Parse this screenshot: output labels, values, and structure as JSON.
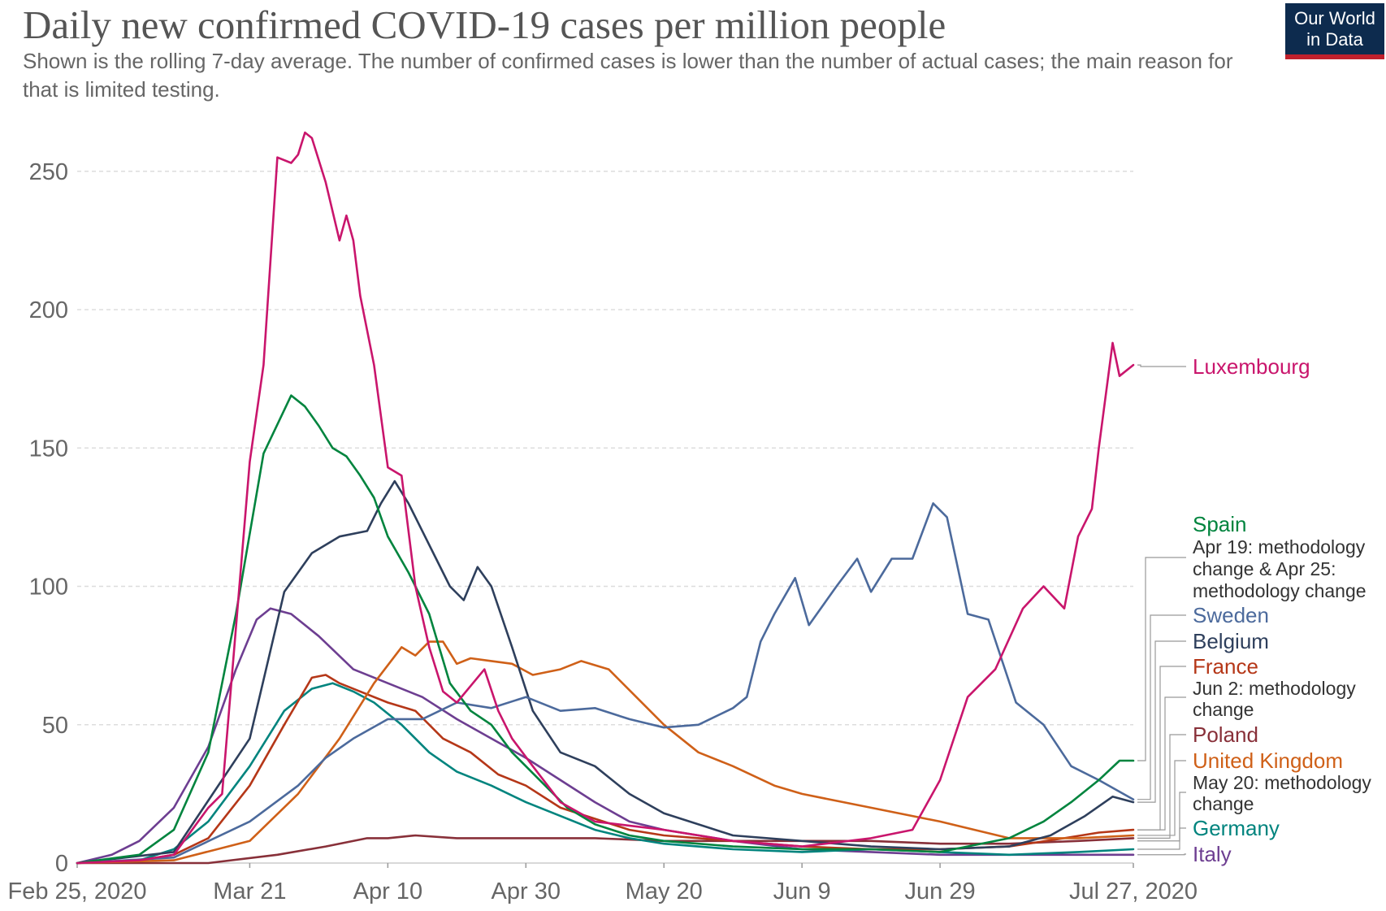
{
  "header": {
    "title": "Daily new confirmed COVID-19 cases per million people",
    "subtitle": "Shown is the rolling 7-day average. The number of confirmed cases is lower than the number of actual cases; the main reason for that is limited testing.",
    "logo_line1": "Our World",
    "logo_line2": "in Data"
  },
  "chart_data": {
    "type": "line",
    "x_start": "2020-02-25",
    "x_ticks": [
      "Feb 25, 2020",
      "Mar 21",
      "Apr 10",
      "Apr 30",
      "May 20",
      "Jun 9",
      "Jun 29",
      "Jul 27, 2020"
    ],
    "y_ticks": [
      0,
      50,
      100,
      150,
      200,
      250
    ],
    "ylim": [
      0,
      265
    ],
    "grid": true,
    "series": [
      {
        "name": "Luxembourg",
        "color": "#c9156c",
        "x": [
          "2020-02-25",
          "2020-03-05",
          "2020-03-10",
          "2020-03-15",
          "2020-03-17",
          "2020-03-21",
          "2020-03-23",
          "2020-03-25",
          "2020-03-27",
          "2020-03-28",
          "2020-03-29",
          "2020-03-30",
          "2020-04-01",
          "2020-04-03",
          "2020-04-04",
          "2020-04-05",
          "2020-04-06",
          "2020-04-08",
          "2020-04-10",
          "2020-04-12",
          "2020-04-14",
          "2020-04-16",
          "2020-04-18",
          "2020-04-20",
          "2020-04-22",
          "2020-04-24",
          "2020-04-26",
          "2020-04-28",
          "2020-05-01",
          "2020-05-05",
          "2020-05-10",
          "2020-05-20",
          "2020-05-30",
          "2020-06-09",
          "2020-06-19",
          "2020-06-25",
          "2020-06-29",
          "2020-07-03",
          "2020-07-07",
          "2020-07-11",
          "2020-07-14",
          "2020-07-17",
          "2020-07-19",
          "2020-07-21",
          "2020-07-22",
          "2020-07-24",
          "2020-07-25",
          "2020-07-27"
        ],
        "y": [
          0,
          1,
          3,
          20,
          25,
          145,
          180,
          255,
          253,
          256,
          264,
          262,
          246,
          225,
          234,
          225,
          205,
          180,
          143,
          140,
          100,
          78,
          62,
          58,
          64,
          70,
          55,
          45,
          35,
          22,
          15,
          12,
          8,
          6,
          9,
          12,
          30,
          60,
          70,
          92,
          100,
          92,
          118,
          128,
          150,
          188,
          176,
          180
        ]
      },
      {
        "name": "Spain",
        "color": "#00843e",
        "x": [
          "2020-02-25",
          "2020-03-05",
          "2020-03-10",
          "2020-03-15",
          "2020-03-19",
          "2020-03-23",
          "2020-03-27",
          "2020-03-29",
          "2020-03-31",
          "2020-04-02",
          "2020-04-04",
          "2020-04-06",
          "2020-04-08",
          "2020-04-10",
          "2020-04-13",
          "2020-04-16",
          "2020-04-19",
          "2020-04-22",
          "2020-04-25",
          "2020-04-28",
          "2020-05-02",
          "2020-05-06",
          "2020-05-10",
          "2020-05-15",
          "2020-05-20",
          "2020-05-30",
          "2020-06-09",
          "2020-06-19",
          "2020-06-29",
          "2020-07-09",
          "2020-07-14",
          "2020-07-18",
          "2020-07-22",
          "2020-07-25",
          "2020-07-27"
        ],
        "y": [
          0,
          3,
          12,
          40,
          90,
          148,
          169,
          165,
          158,
          150,
          147,
          140,
          132,
          118,
          105,
          90,
          65,
          55,
          50,
          40,
          30,
          20,
          14,
          10,
          8,
          6,
          5,
          5,
          4,
          9,
          15,
          22,
          30,
          37,
          37
        ]
      },
      {
        "name": "Sweden",
        "color": "#4c6a9c",
        "x": [
          "2020-02-25",
          "2020-03-10",
          "2020-03-21",
          "2020-03-28",
          "2020-04-01",
          "2020-04-05",
          "2020-04-10",
          "2020-04-15",
          "2020-04-20",
          "2020-04-25",
          "2020-04-30",
          "2020-05-05",
          "2020-05-10",
          "2020-05-15",
          "2020-05-20",
          "2020-05-25",
          "2020-05-30",
          "2020-06-01",
          "2020-06-03",
          "2020-06-05",
          "2020-06-08",
          "2020-06-10",
          "2020-06-14",
          "2020-06-17",
          "2020-06-19",
          "2020-06-22",
          "2020-06-25",
          "2020-06-28",
          "2020-06-30",
          "2020-07-03",
          "2020-07-06",
          "2020-07-10",
          "2020-07-14",
          "2020-07-18",
          "2020-07-22",
          "2020-07-27"
        ],
        "y": [
          0,
          2,
          15,
          28,
          38,
          45,
          52,
          52,
          58,
          56,
          60,
          55,
          56,
          52,
          49,
          50,
          56,
          60,
          80,
          90,
          103,
          86,
          100,
          110,
          98,
          110,
          110,
          130,
          125,
          90,
          88,
          58,
          50,
          35,
          30,
          23
        ]
      },
      {
        "name": "Belgium",
        "color": "#2e3f5c",
        "x": [
          "2020-02-25",
          "2020-03-10",
          "2020-03-21",
          "2020-03-26",
          "2020-03-30",
          "2020-04-03",
          "2020-04-07",
          "2020-04-09",
          "2020-04-11",
          "2020-04-13",
          "2020-04-15",
          "2020-04-17",
          "2020-04-19",
          "2020-04-21",
          "2020-04-23",
          "2020-04-25",
          "2020-04-28",
          "2020-05-01",
          "2020-05-05",
          "2020-05-10",
          "2020-05-15",
          "2020-05-20",
          "2020-05-30",
          "2020-06-09",
          "2020-06-19",
          "2020-06-29",
          "2020-07-09",
          "2020-07-15",
          "2020-07-20",
          "2020-07-24",
          "2020-07-27"
        ],
        "y": [
          0,
          4,
          45,
          98,
          112,
          118,
          120,
          130,
          138,
          130,
          120,
          110,
          100,
          95,
          107,
          100,
          78,
          55,
          40,
          35,
          25,
          18,
          10,
          8,
          6,
          5,
          6,
          10,
          17,
          24,
          22
        ]
      },
      {
        "name": "France",
        "color": "#b53718",
        "x": [
          "2020-02-25",
          "2020-03-05",
          "2020-03-10",
          "2020-03-15",
          "2020-03-21",
          "2020-03-26",
          "2020-03-30",
          "2020-04-01",
          "2020-04-03",
          "2020-04-06",
          "2020-04-10",
          "2020-04-14",
          "2020-04-18",
          "2020-04-22",
          "2020-04-26",
          "2020-04-30",
          "2020-05-05",
          "2020-05-10",
          "2020-05-15",
          "2020-05-20",
          "2020-05-30",
          "2020-06-09",
          "2020-06-19",
          "2020-06-29",
          "2020-07-09",
          "2020-07-17",
          "2020-07-22",
          "2020-07-27"
        ],
        "y": [
          0,
          1,
          3,
          9,
          28,
          50,
          67,
          68,
          65,
          62,
          58,
          55,
          45,
          40,
          32,
          28,
          20,
          16,
          12,
          10,
          8,
          6,
          5,
          5,
          6,
          9,
          11,
          12
        ]
      },
      {
        "name": "Poland",
        "color": "#883039",
        "x": [
          "2020-02-25",
          "2020-03-15",
          "2020-03-25",
          "2020-04-01",
          "2020-04-07",
          "2020-04-10",
          "2020-04-14",
          "2020-04-20",
          "2020-04-25",
          "2020-04-30",
          "2020-05-10",
          "2020-05-20",
          "2020-05-30",
          "2020-06-09",
          "2020-06-19",
          "2020-06-29",
          "2020-07-09",
          "2020-07-19",
          "2020-07-27"
        ],
        "y": [
          0,
          0,
          3,
          6,
          9,
          9,
          10,
          9,
          9,
          9,
          9,
          8,
          8,
          8,
          8,
          7,
          7,
          8,
          9
        ]
      },
      {
        "name": "United Kingdom",
        "color": "#cf6018",
        "x": [
          "2020-02-25",
          "2020-03-10",
          "2020-03-21",
          "2020-03-28",
          "2020-04-03",
          "2020-04-08",
          "2020-04-12",
          "2020-04-14",
          "2020-04-16",
          "2020-04-18",
          "2020-04-20",
          "2020-04-22",
          "2020-04-25",
          "2020-04-28",
          "2020-05-01",
          "2020-05-05",
          "2020-05-08",
          "2020-05-12",
          "2020-05-16",
          "2020-05-20",
          "2020-05-25",
          "2020-05-30",
          "2020-06-05",
          "2020-06-09",
          "2020-06-19",
          "2020-06-29",
          "2020-07-09",
          "2020-07-19",
          "2020-07-27"
        ],
        "y": [
          0,
          1,
          8,
          25,
          45,
          65,
          78,
          75,
          80,
          80,
          72,
          74,
          73,
          72,
          68,
          70,
          73,
          70,
          60,
          50,
          40,
          35,
          28,
          25,
          20,
          15,
          9,
          9,
          10
        ]
      },
      {
        "name": "Germany",
        "color": "#00847e",
        "x": [
          "2020-02-25",
          "2020-03-05",
          "2020-03-10",
          "2020-03-15",
          "2020-03-21",
          "2020-03-26",
          "2020-03-30",
          "2020-04-02",
          "2020-04-05",
          "2020-04-08",
          "2020-04-12",
          "2020-04-16",
          "2020-04-20",
          "2020-04-25",
          "2020-04-30",
          "2020-05-05",
          "2020-05-10",
          "2020-05-15",
          "2020-05-20",
          "2020-05-30",
          "2020-06-09",
          "2020-06-19",
          "2020-06-29",
          "2020-07-09",
          "2020-07-19",
          "2020-07-27"
        ],
        "y": [
          0,
          1,
          5,
          15,
          35,
          55,
          63,
          65,
          62,
          58,
          50,
          40,
          33,
          28,
          22,
          17,
          12,
          9,
          7,
          5,
          4,
          5,
          4,
          3,
          4,
          5
        ]
      },
      {
        "name": "Italy",
        "color": "#6d3e91",
        "x": [
          "2020-02-25",
          "2020-03-01",
          "2020-03-05",
          "2020-03-10",
          "2020-03-15",
          "2020-03-19",
          "2020-03-22",
          "2020-03-24",
          "2020-03-27",
          "2020-03-31",
          "2020-04-05",
          "2020-04-10",
          "2020-04-15",
          "2020-04-20",
          "2020-04-25",
          "2020-04-30",
          "2020-05-05",
          "2020-05-10",
          "2020-05-15",
          "2020-05-20",
          "2020-05-30",
          "2020-06-09",
          "2020-06-19",
          "2020-06-29",
          "2020-07-09",
          "2020-07-19",
          "2020-07-27"
        ],
        "y": [
          0,
          3,
          8,
          20,
          42,
          70,
          88,
          92,
          90,
          82,
          70,
          65,
          60,
          52,
          45,
          38,
          30,
          22,
          15,
          12,
          8,
          5,
          4,
          3,
          3,
          3,
          3
        ]
      }
    ],
    "labels": [
      {
        "text": "Luxembourg",
        "color": "#c9156c"
      },
      {
        "text": "Spain",
        "color": "#00843e"
      },
      {
        "text": "Apr 19: methodology",
        "color": "#333333"
      },
      {
        "text": "change & Apr 25:",
        "color": "#333333"
      },
      {
        "text": "methodology change",
        "color": "#333333"
      },
      {
        "text": "Sweden",
        "color": "#4c6a9c"
      },
      {
        "text": "Belgium",
        "color": "#2e3f5c"
      },
      {
        "text": "France",
        "color": "#b53718"
      },
      {
        "text": "Jun 2: methodology",
        "color": "#333333"
      },
      {
        "text": "change",
        "color": "#333333"
      },
      {
        "text": "Poland",
        "color": "#883039"
      },
      {
        "text": "United Kingdom",
        "color": "#cf6018"
      },
      {
        "text": "May 20: methodology",
        "color": "#333333"
      },
      {
        "text": "change",
        "color": "#333333"
      },
      {
        "text": "Germany",
        "color": "#00847e"
      },
      {
        "text": "Italy",
        "color": "#6d3e91"
      }
    ]
  }
}
